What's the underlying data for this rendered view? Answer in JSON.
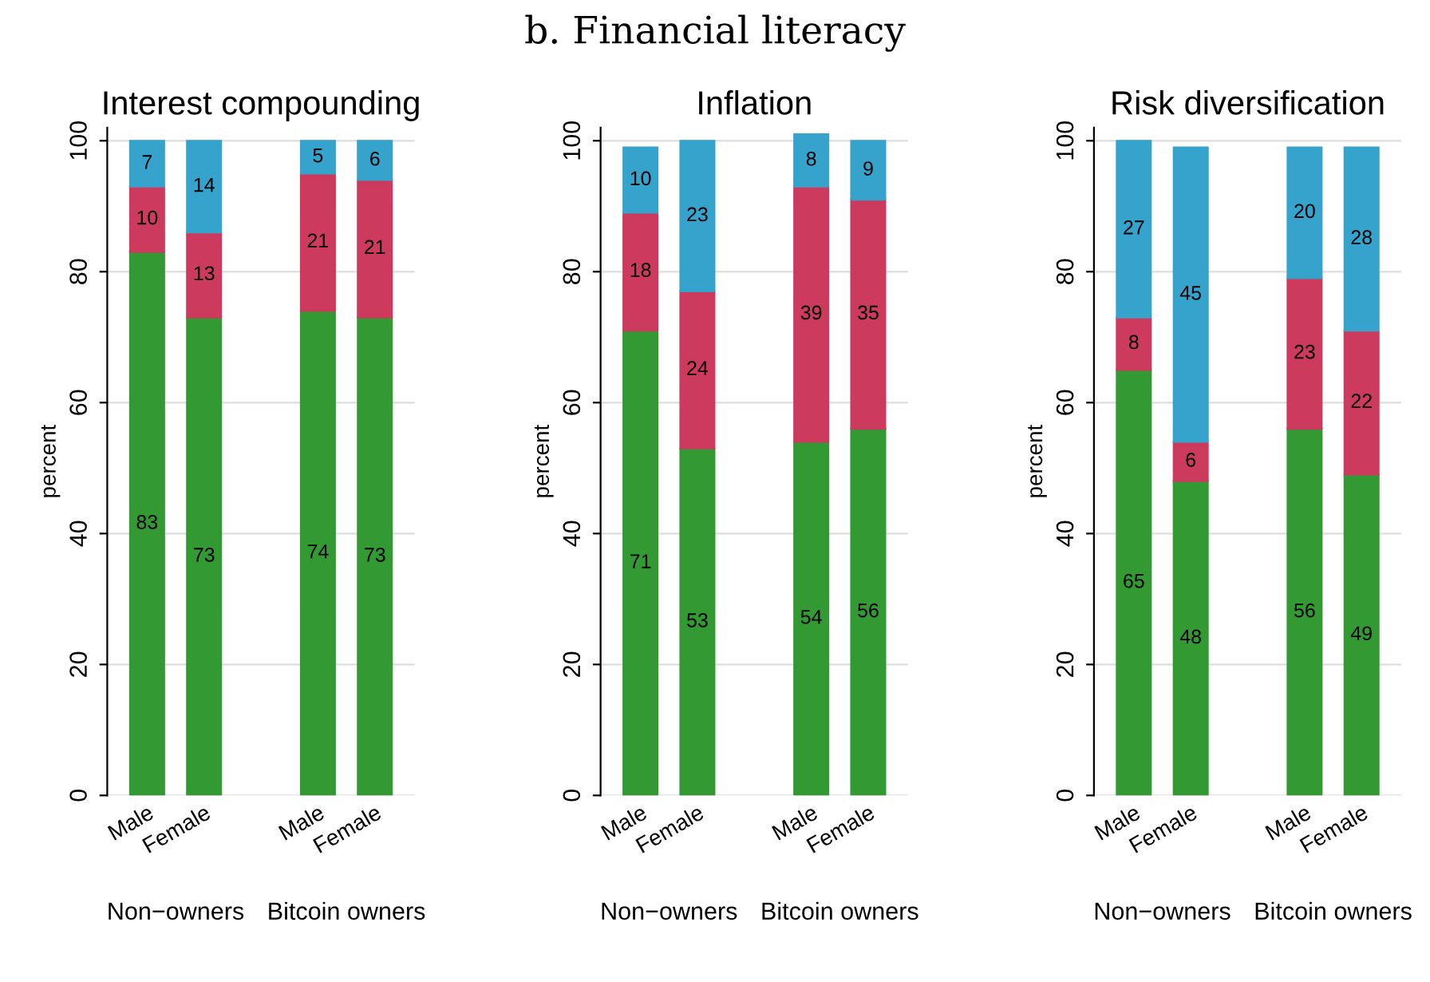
{
  "chart_data": [
    {
      "type": "bar",
      "stacked": true,
      "title": "Interest compounding",
      "ylabel": "percent",
      "categories": [
        "Male",
        "Female",
        null,
        "Male",
        "Female"
      ],
      "series": [
        {
          "color": "#339933",
          "values": [
            83,
            73,
            null,
            74,
            73
          ]
        },
        {
          "color": "#cc3a5e",
          "values": [
            10,
            13,
            null,
            21,
            21
          ]
        },
        {
          "color": "#35a3cc",
          "values": [
            7,
            14,
            null,
            5,
            6
          ]
        }
      ],
      "data_labels": true,
      "ylim": [
        0,
        102
      ],
      "yticks": [
        0,
        20,
        40,
        60,
        80,
        100
      ],
      "grid": "y",
      "annotations": [
        "b. Financial literacy",
        "Non−owners",
        "Bitcoin owners"
      ]
    },
    {
      "type": "bar",
      "stacked": true,
      "title": "Inflation",
      "ylabel": "percent",
      "categories": [
        "Male",
        "Female",
        null,
        "Male",
        "Female"
      ],
      "series": [
        {
          "color": "#339933",
          "values": [
            71,
            53,
            null,
            54,
            56
          ]
        },
        {
          "color": "#cc3a5e",
          "values": [
            18,
            24,
            null,
            39,
            35
          ]
        },
        {
          "color": "#35a3cc",
          "values": [
            10,
            23,
            null,
            8,
            9
          ]
        }
      ],
      "data_labels": true,
      "ylim": [
        0,
        102
      ],
      "yticks": [
        0,
        20,
        40,
        60,
        80,
        100
      ],
      "grid": "y",
      "annotations": [
        "Non−owners",
        "Bitcoin owners"
      ]
    },
    {
      "type": "bar",
      "stacked": true,
      "title": "Risk diversification",
      "ylabel": "percent",
      "categories": [
        "Male",
        "Female",
        null,
        "Male",
        "Female"
      ],
      "series": [
        {
          "color": "#339933",
          "values": [
            65,
            48,
            null,
            56,
            49
          ]
        },
        {
          "color": "#cc3a5e",
          "values": [
            8,
            6,
            null,
            23,
            22
          ]
        },
        {
          "color": "#35a3cc",
          "values": [
            27,
            45,
            null,
            20,
            28
          ]
        }
      ],
      "data_labels": true,
      "ylim": [
        0,
        102
      ],
      "yticks": [
        0,
        20,
        40,
        60,
        80,
        100
      ],
      "grid": "y",
      "annotations": [
        "Non−owners",
        "Bitcoin owners"
      ]
    }
  ]
}
